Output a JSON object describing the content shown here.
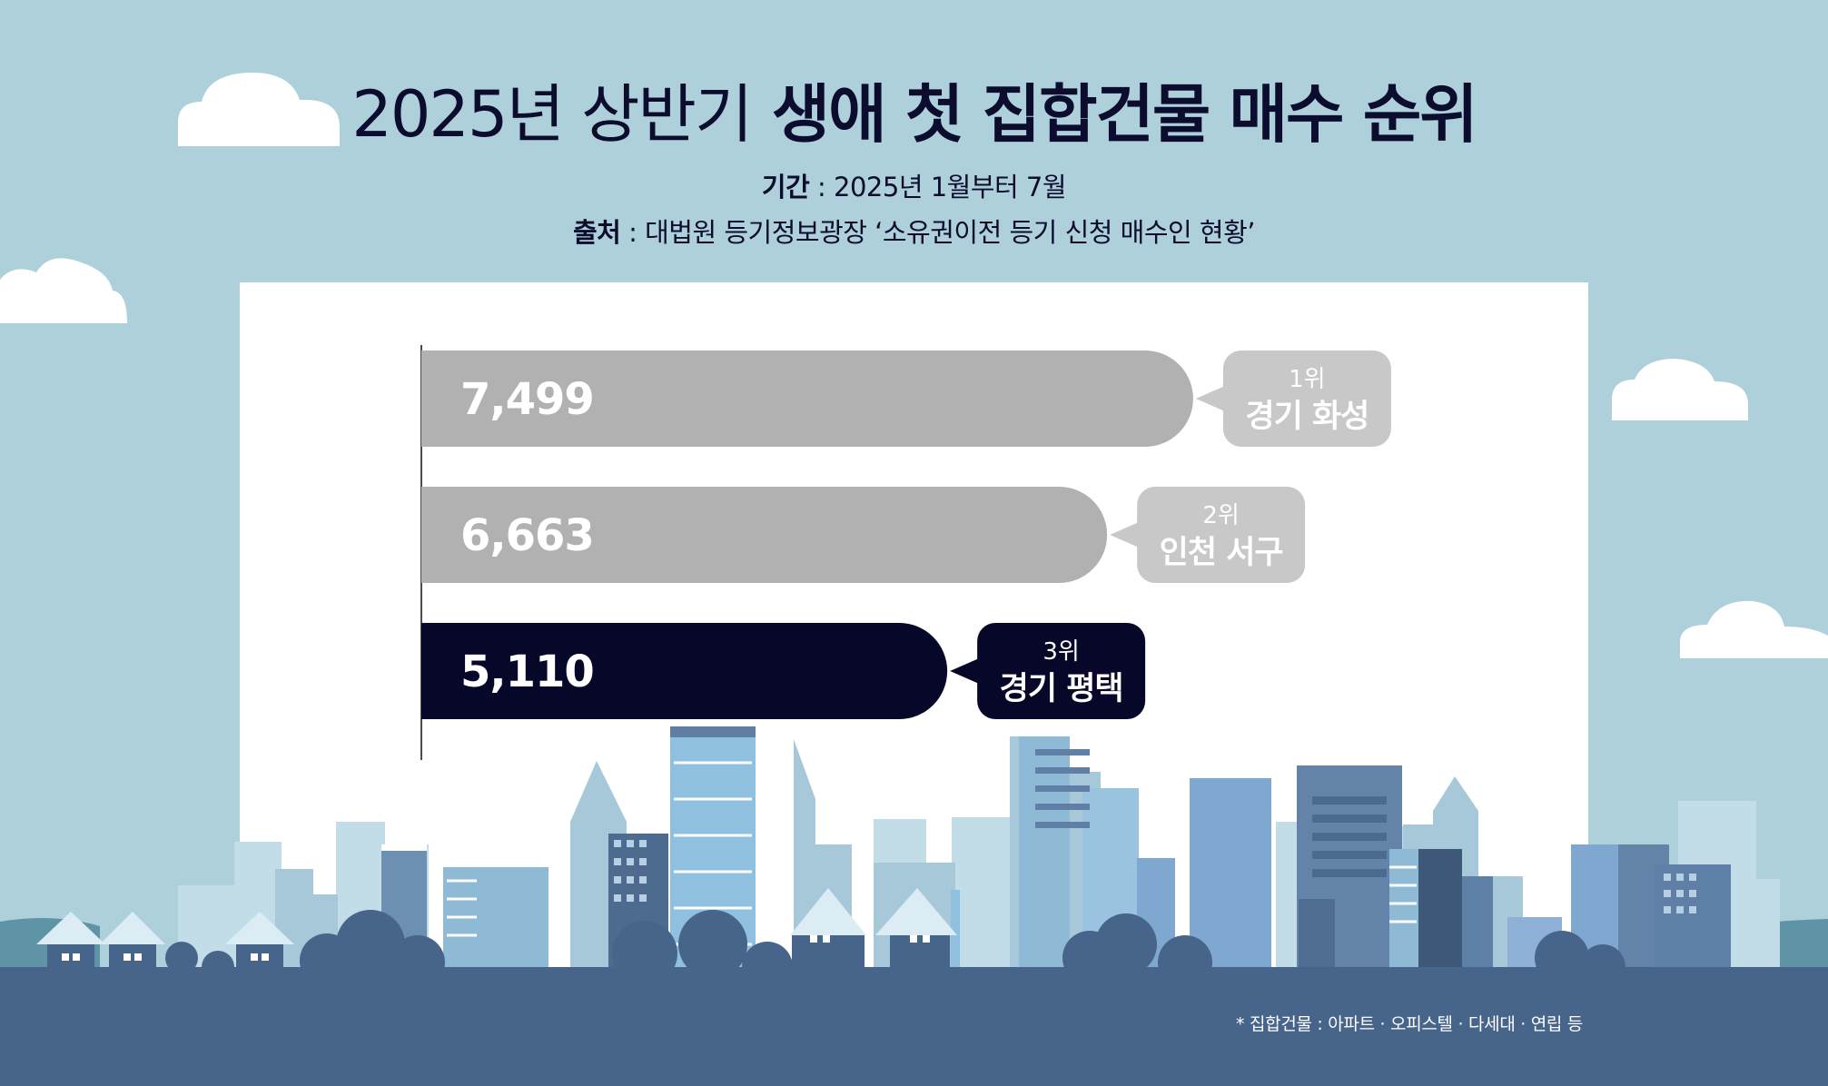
{
  "title": {
    "normal": "2025년 상반기",
    "bold": "생애 첫 집합건물 매수 순위"
  },
  "period": {
    "label": "기간",
    "value": "2025년 1월부터 7월"
  },
  "source": {
    "label": "출처",
    "value": "대법원 등기정보광장 ‘소유권이전 등기 신청 매수인 현황’"
  },
  "footnote": "* 집합건물 : 아파트 · 오피스텔 · 다세대 · 연립 등",
  "colors": {
    "sky": "#aed0da",
    "panel": "#ffffff",
    "ground": "#47648a",
    "navy": "#0b0c2e",
    "bar_gray": "#b1b1b1",
    "label_gray": "#c8c8c8",
    "highlight": "#070829"
  },
  "chart_data": {
    "type": "bar",
    "orientation": "horizontal",
    "categories": [
      "경기 화성",
      "인천 서구",
      "경기 평택"
    ],
    "ranks": [
      "1위",
      "2위",
      "3위"
    ],
    "values": [
      7499,
      6663,
      5110
    ],
    "value_labels": [
      "7,499",
      "6,663",
      "5,110"
    ],
    "highlight_index": 2,
    "xlim": [
      0,
      7500
    ],
    "grid": false,
    "legend": "none"
  }
}
